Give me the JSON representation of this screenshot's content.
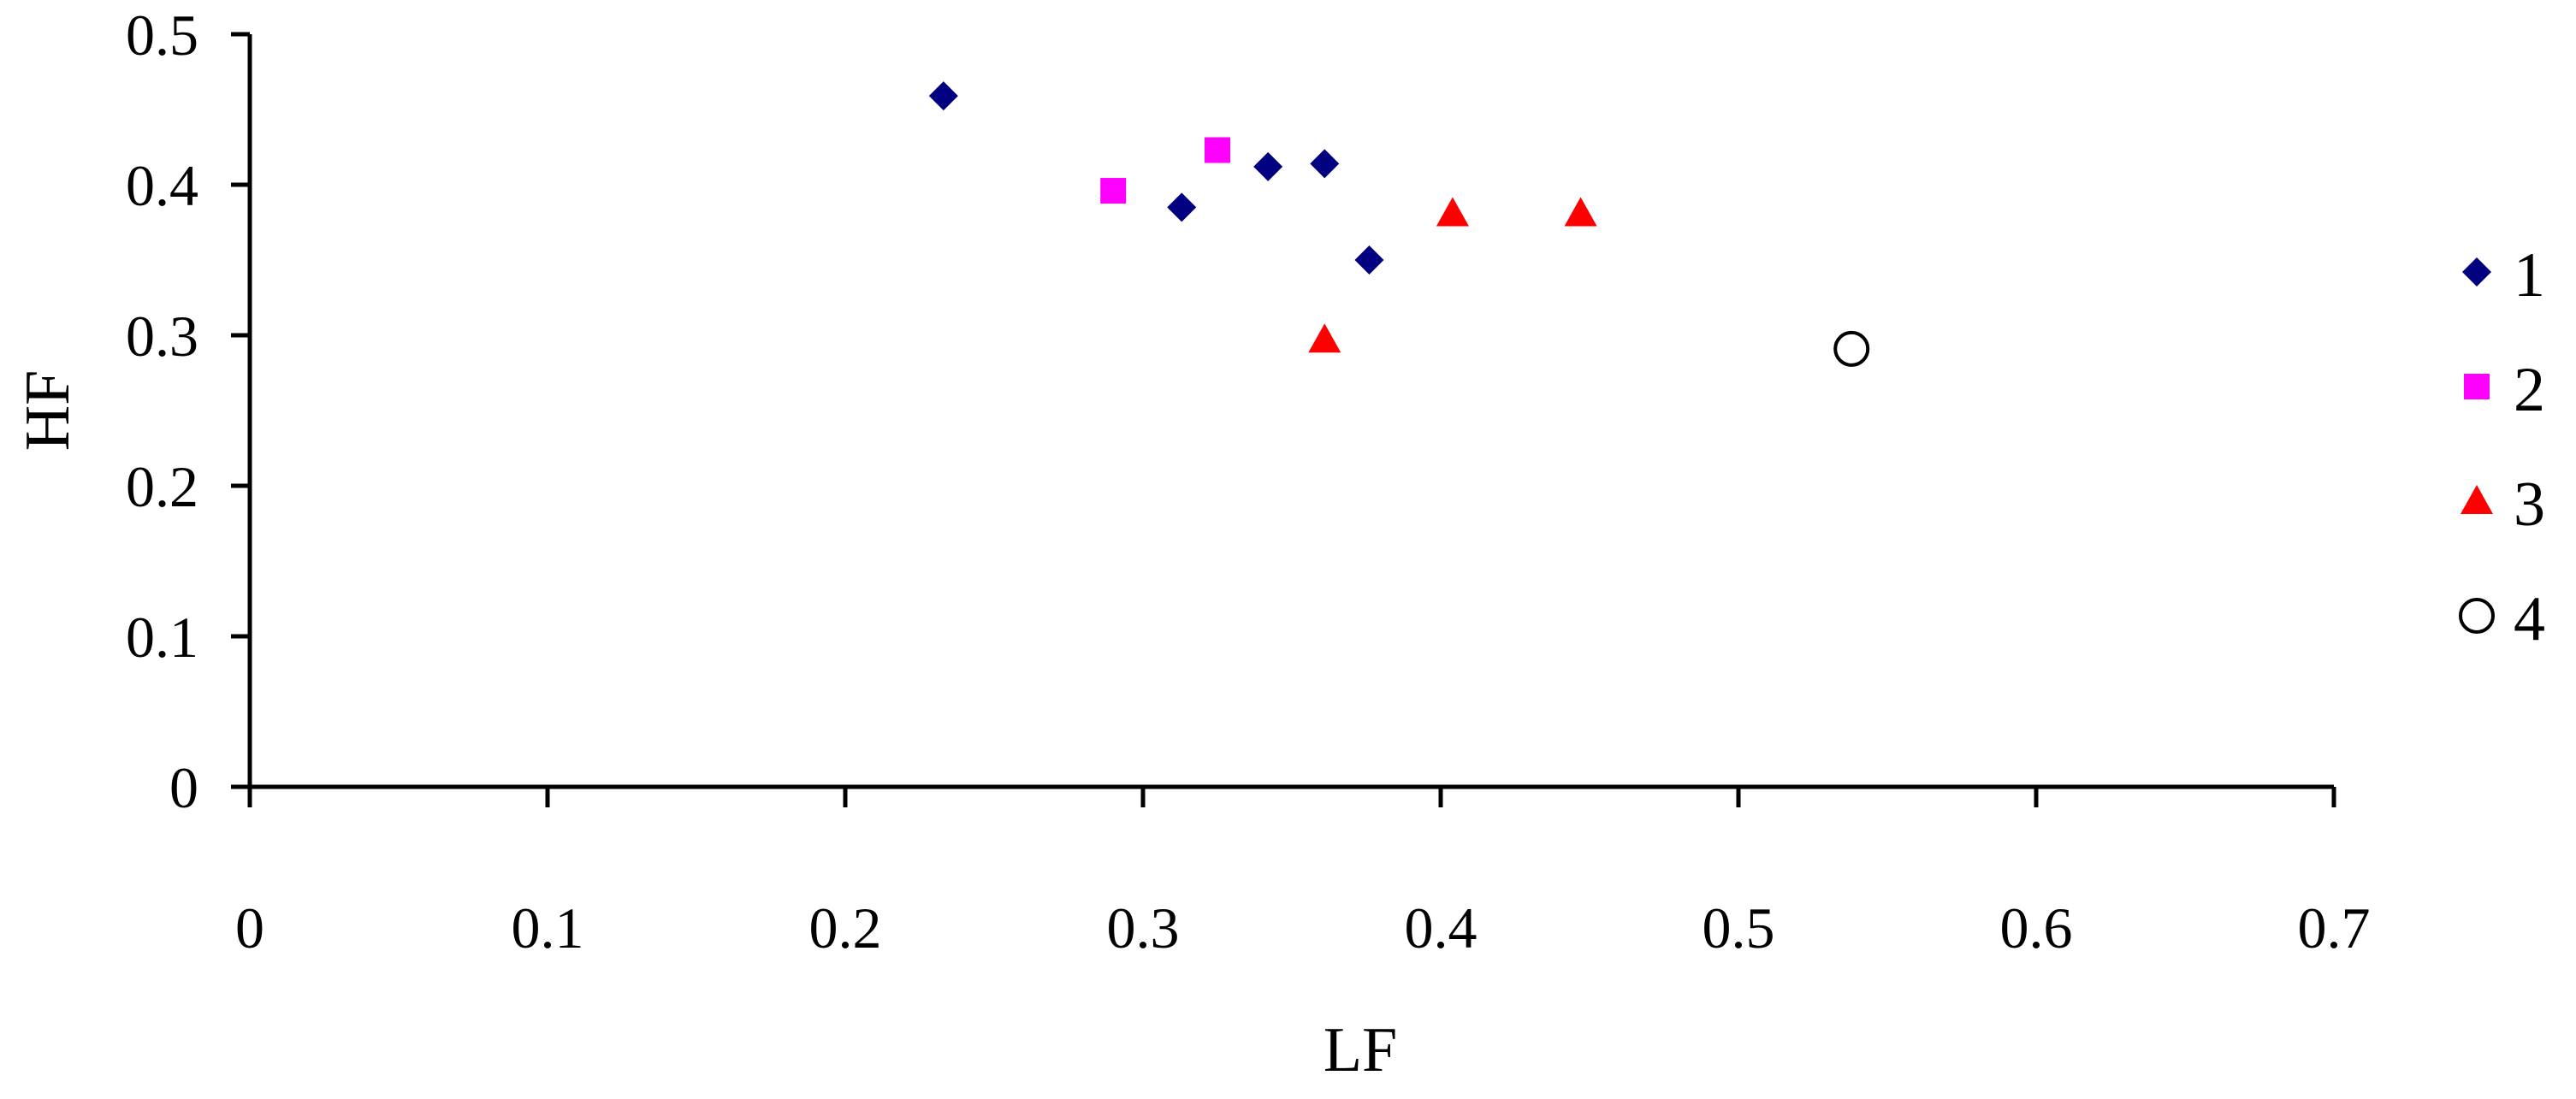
{
  "chart_data": {
    "type": "scatter",
    "xlabel": "LF",
    "ylabel": "HF",
    "xlim": [
      0,
      0.7
    ],
    "ylim": [
      0,
      0.5
    ],
    "xticks": [
      "0",
      "0.1",
      "0.2",
      "0.3",
      "0.4",
      "0.5",
      "0.6",
      "0.7"
    ],
    "yticks": [
      "0",
      "0.1",
      "0.2",
      "0.3",
      "0.4",
      "0.5"
    ],
    "grid": false,
    "legend_position": "right",
    "series": [
      {
        "name": "1",
        "marker": "diamond",
        "color": "#000080",
        "points": [
          {
            "x": 0.233,
            "y": 0.459
          },
          {
            "x": 0.313,
            "y": 0.385
          },
          {
            "x": 0.342,
            "y": 0.412
          },
          {
            "x": 0.361,
            "y": 0.414
          },
          {
            "x": 0.376,
            "y": 0.35
          }
        ]
      },
      {
        "name": "2",
        "marker": "square",
        "color": "#FF00FF",
        "points": [
          {
            "x": 0.29,
            "y": 0.396
          },
          {
            "x": 0.325,
            "y": 0.423
          }
        ]
      },
      {
        "name": "3",
        "marker": "triangle",
        "color": "#FF0000",
        "points": [
          {
            "x": 0.361,
            "y": 0.297
          },
          {
            "x": 0.404,
            "y": 0.381
          },
          {
            "x": 0.447,
            "y": 0.381
          }
        ]
      },
      {
        "name": "4",
        "marker": "circle",
        "color": "#000000",
        "points": [
          {
            "x": 0.538,
            "y": 0.291
          }
        ]
      }
    ]
  }
}
